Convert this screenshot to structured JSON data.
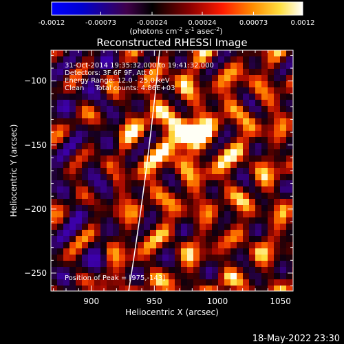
{
  "colorbar": {
    "tick_labels": [
      "-0.0012",
      "-0.00073",
      "-0.00024",
      "0.00024",
      "0.00073",
      "0.0012"
    ],
    "tick_values": [
      -0.0012,
      -0.00073,
      -0.00024,
      0.00024,
      0.00073,
      0.0012
    ],
    "range": [
      -0.0012,
      0.0012
    ],
    "unit_label_parts": {
      "a": "(photons cm",
      "a_sup": "-2",
      "b": " s",
      "b_sup": "-1",
      "c": " asec",
      "c_sup": "-2",
      "d": ")"
    },
    "colors": {
      "stops": [
        "#0000ff",
        "#0000c8",
        "#5a0048",
        "#000000",
        "#7a0000",
        "#ff0000",
        "#ff8000",
        "#ffff40",
        "#ffffff"
      ]
    }
  },
  "image": {
    "title": "Reconstructed RHESSI Image",
    "info_lines": [
      "31-Oct-2014 19:35:32.000 to 19:41:32.000",
      "Detectors: 3F 6F 9F, Att 0",
      "Energy Range: 12.0 - 25.0 keV",
      "Clean     Total counts: 4.86E+03"
    ],
    "peak_label": "Position of Peak = [975,-143]",
    "peak_position": [
      975,
      -143
    ],
    "limb_color": "#ffffff"
  },
  "axes": {
    "x": {
      "label": "Heliocentric X (arcsec)",
      "range": [
        868,
        1060
      ],
      "ticks": [
        900,
        950,
        1000,
        1050
      ],
      "tick_labels": [
        "900",
        "950",
        "1000",
        "1050"
      ]
    },
    "y": {
      "label": "Heliocentric Y (arcsec)",
      "range": [
        -264,
        -76
      ],
      "ticks": [
        -100,
        -150,
        -200,
        -250
      ],
      "tick_labels": [
        "−100",
        "−150",
        "−200",
        "−250"
      ]
    }
  },
  "footer": {
    "timestamp": "18-May-2022 23:30"
  }
}
